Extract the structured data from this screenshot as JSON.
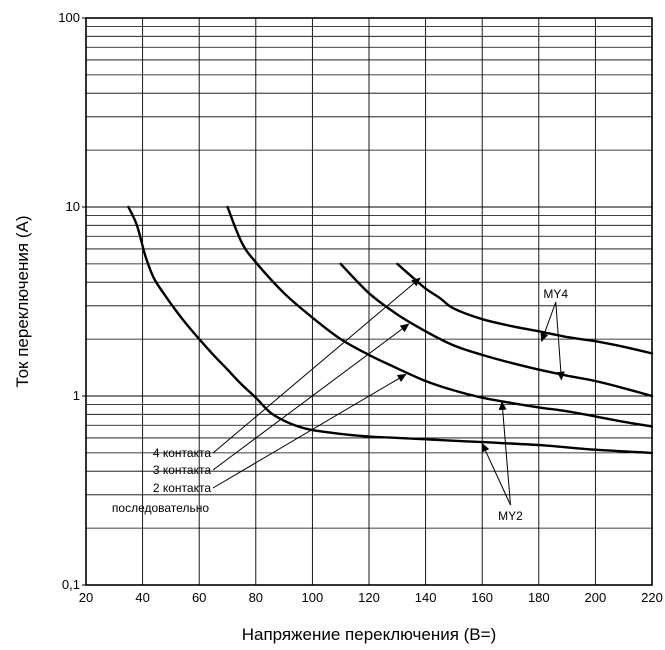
{
  "chart_data": {
    "type": "line",
    "xlabel": "Напряжение переключения (В=)",
    "ylabel": "Ток переключения (А)",
    "xlim": [
      20,
      220
    ],
    "ylim": [
      0.1,
      100
    ],
    "yscale": "log",
    "grid": true,
    "x_ticks": [
      20,
      40,
      60,
      80,
      100,
      120,
      140,
      160,
      180,
      200,
      220
    ],
    "x_tick_labels": [
      "20",
      "40",
      "60",
      "80",
      "100",
      "120",
      "140",
      "160",
      "180",
      "200",
      "220"
    ],
    "y_ticks": [
      0.1,
      1,
      10,
      100
    ],
    "y_tick_labels": [
      "0,1",
      "1",
      "10",
      "100"
    ],
    "series": [
      {
        "name": "последовательно",
        "x": [
          35,
          38,
          41,
          44,
          48,
          52,
          56,
          60,
          65,
          70,
          75,
          80,
          85,
          90,
          95,
          100,
          110,
          120,
          130,
          140,
          160,
          180,
          200,
          220
        ],
        "y": [
          10,
          8,
          5.5,
          4.2,
          3.4,
          2.8,
          2.35,
          2.0,
          1.65,
          1.38,
          1.15,
          0.98,
          0.82,
          0.74,
          0.69,
          0.66,
          0.63,
          0.61,
          0.6,
          0.59,
          0.57,
          0.55,
          0.52,
          0.5
        ]
      },
      {
        "name": "2 контакта",
        "x": [
          70,
          75,
          80,
          90,
          100,
          110,
          120,
          130,
          140,
          150,
          160,
          170,
          180,
          190,
          200,
          210,
          220
        ],
        "y": [
          10,
          6.5,
          5.1,
          3.5,
          2.6,
          2.0,
          1.65,
          1.4,
          1.2,
          1.07,
          0.98,
          0.92,
          0.87,
          0.83,
          0.78,
          0.73,
          0.69
        ]
      },
      {
        "name": "3 контакта",
        "x": [
          110,
          120,
          130,
          140,
          150,
          160,
          170,
          180,
          190,
          200,
          210,
          220
        ],
        "y": [
          5.0,
          3.5,
          2.7,
          2.2,
          1.85,
          1.65,
          1.5,
          1.38,
          1.28,
          1.2,
          1.1,
          1.0
        ]
      },
      {
        "name": "4 контакта",
        "x": [
          130,
          135,
          140,
          145,
          150,
          160,
          170,
          180,
          190,
          200,
          210,
          220
        ],
        "y": [
          5.0,
          4.3,
          3.7,
          3.3,
          2.9,
          2.55,
          2.35,
          2.2,
          2.05,
          1.95,
          1.82,
          1.68
        ]
      }
    ],
    "annotations": {
      "legend_4": "4 контакта",
      "legend_3": "3 контакта",
      "legend_2": "2 контакта",
      "legend_series": "последовательно",
      "label_my4": "MY4",
      "label_my2": "MY2"
    }
  }
}
